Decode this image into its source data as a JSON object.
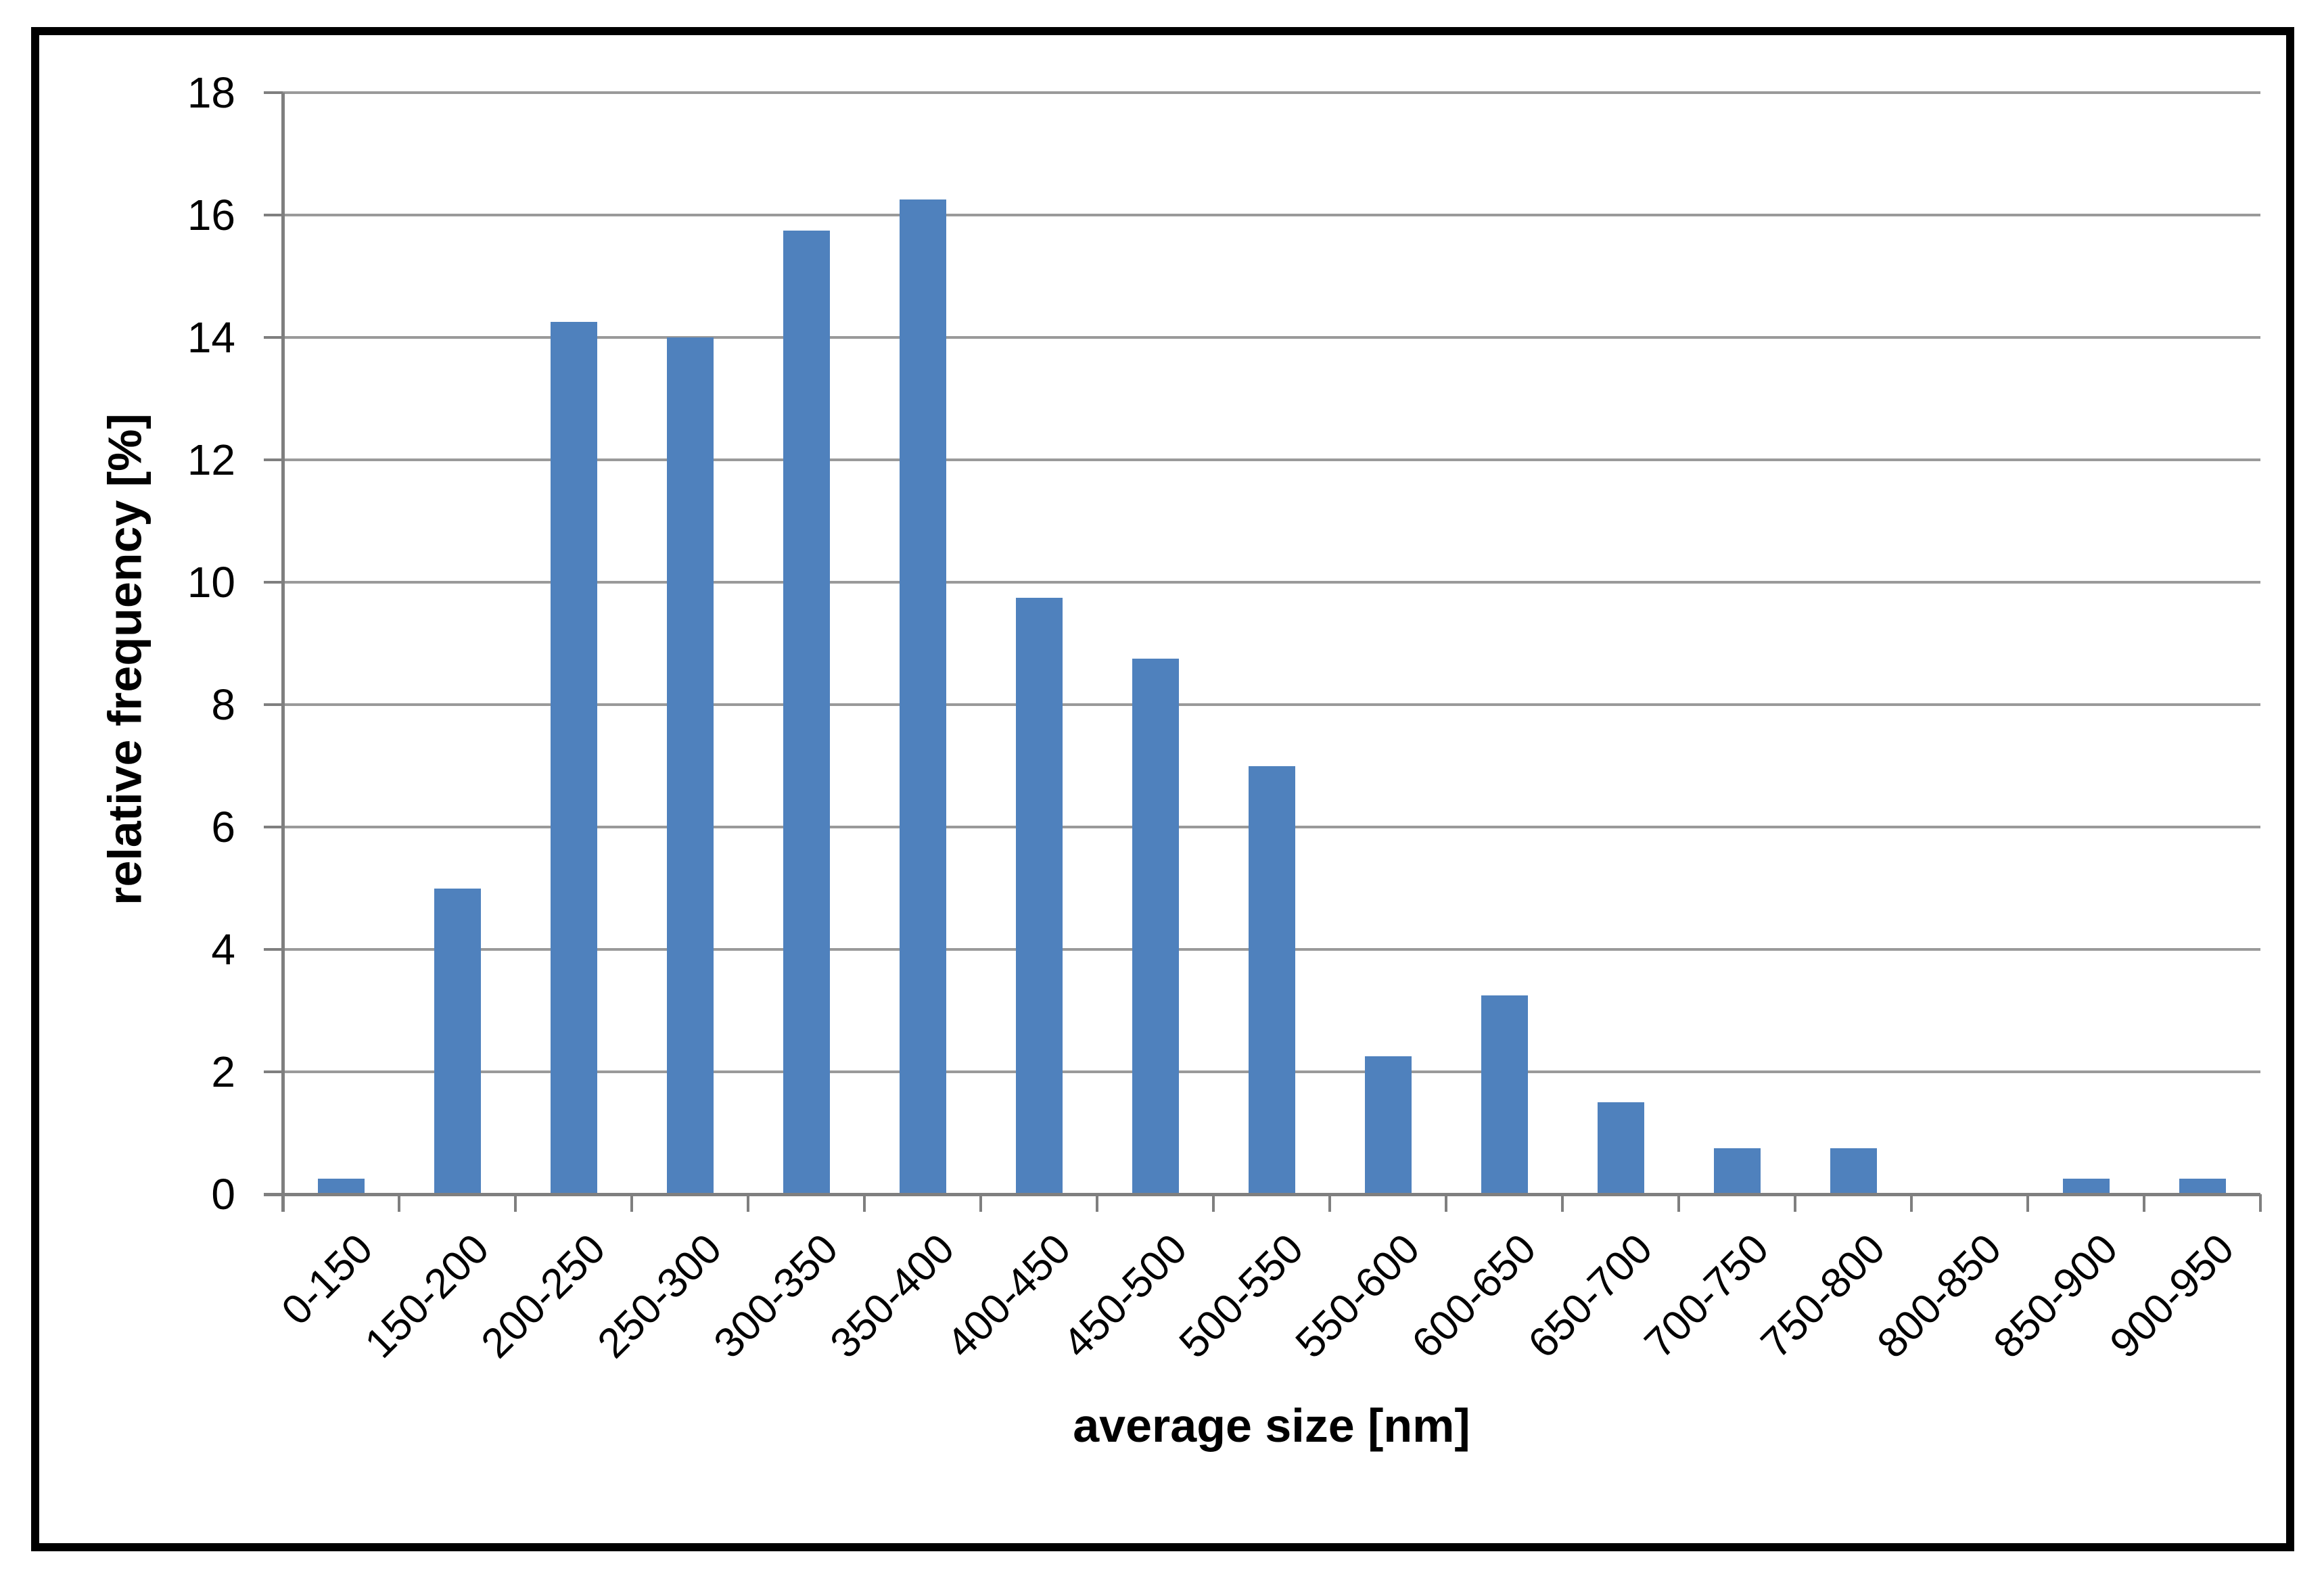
{
  "frame": {
    "border_color": "#000000",
    "background": "#ffffff"
  },
  "chart_data": {
    "type": "bar",
    "title": "",
    "xlabel": "average size [nm]",
    "ylabel": "relative frequency [%]",
    "categories": [
      "0-150",
      "150-200",
      "200-250",
      "250-300",
      "300-350",
      "350-400",
      "400-450",
      "450-500",
      "500-550",
      "550-600",
      "600-650",
      "650-700",
      "700-750",
      "750-800",
      "800-850",
      "850-900",
      "900-950"
    ],
    "values": [
      0.25,
      5,
      14.25,
      14,
      15.75,
      16.25,
      9.75,
      8.75,
      7,
      2.25,
      3.25,
      1.5,
      0.75,
      0.75,
      0,
      0.25,
      0.25
    ],
    "yticks": [
      0,
      2,
      4,
      6,
      8,
      10,
      12,
      14,
      16,
      18
    ],
    "ylim": [
      0,
      18
    ],
    "grid": true,
    "legend_position": "none",
    "bar_color": "#4F81BD",
    "gridline_color": "#9A9A9A",
    "axis_color": "#7F7F7F",
    "text_color": "#000000"
  }
}
